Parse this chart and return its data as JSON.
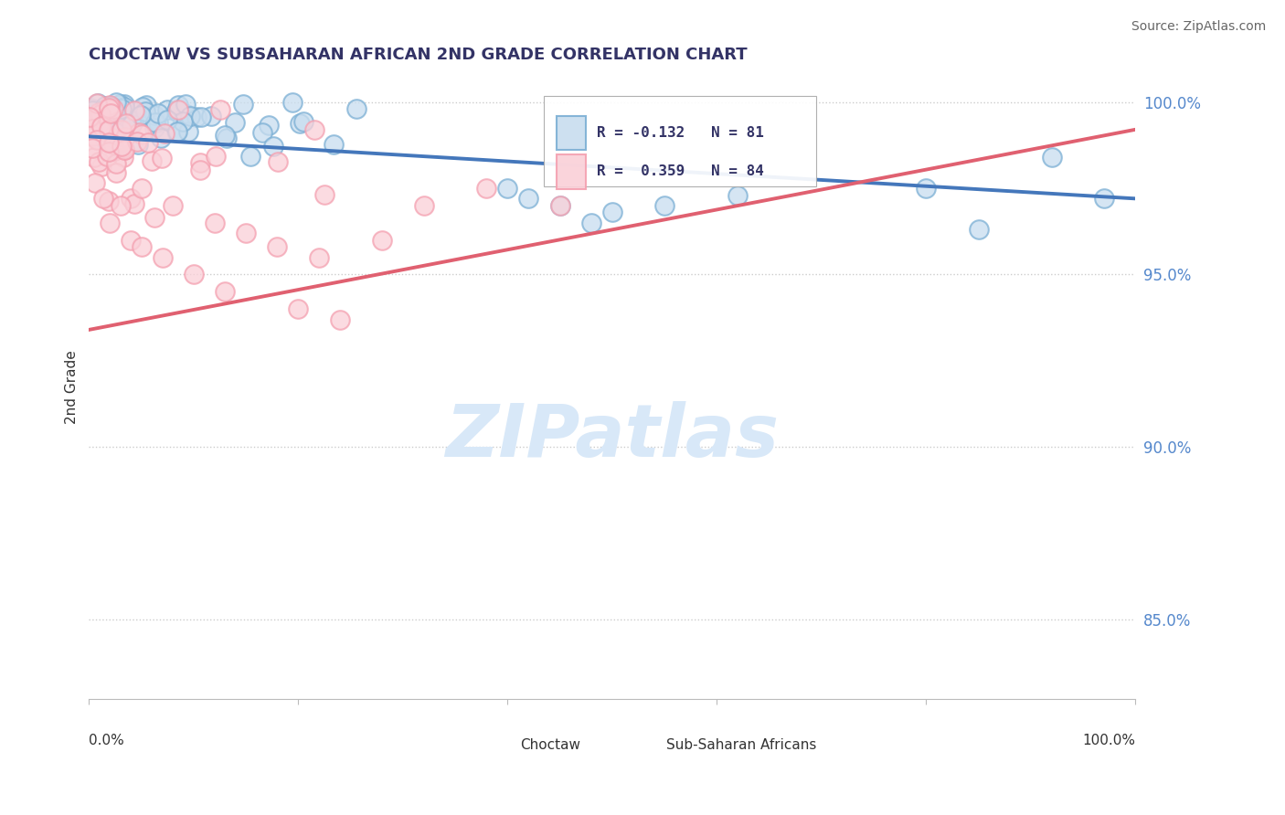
{
  "title": "CHOCTAW VS SUBSAHARAN AFRICAN 2ND GRADE CORRELATION CHART",
  "source": "Source: ZipAtlas.com",
  "ylabel": "2nd Grade",
  "blue_R": -0.132,
  "blue_N": 81,
  "pink_R": 0.359,
  "pink_N": 84,
  "blue_color": "#7BAFD4",
  "pink_color": "#F4A0B0",
  "blue_fill": "#C8DDEF",
  "pink_fill": "#FAD0D8",
  "blue_line_color": "#4477BB",
  "pink_line_color": "#E06070",
  "watermark_color": "#D8E8F8",
  "legend_label_blue": "Choctaw",
  "legend_label_pink": "Sub-Saharan Africans",
  "xlim": [
    0.0,
    1.0
  ],
  "ylim": [
    0.827,
    1.008
  ],
  "yticks": [
    0.85,
    0.9,
    0.95,
    1.0
  ],
  "ytick_labels": [
    "85.0%",
    "90.0%",
    "95.0%",
    "100.0%"
  ],
  "blue_trend": [
    0.99,
    0.972
  ],
  "pink_trend": [
    0.934,
    0.992
  ],
  "background_color": "#ffffff",
  "grid_color": "#cccccc",
  "title_color": "#333366",
  "ytick_color": "#5588CC"
}
